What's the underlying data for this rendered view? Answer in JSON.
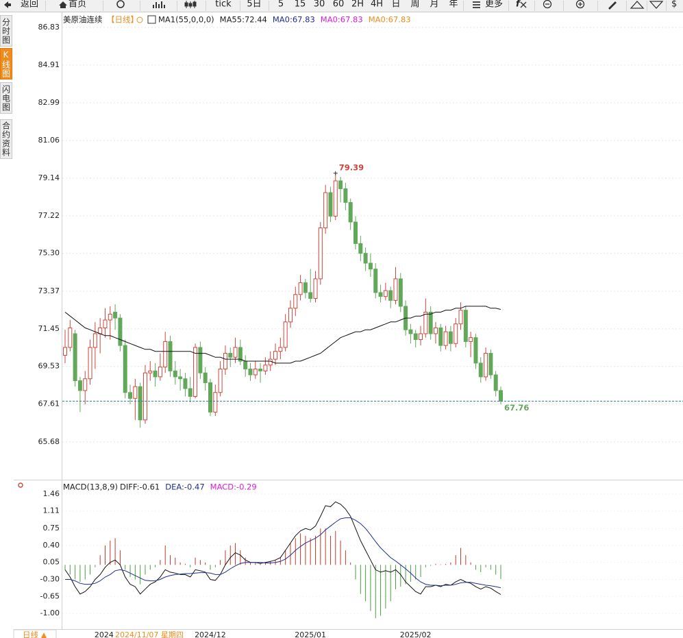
{
  "toolbar": {
    "back": "返回",
    "home": "首页",
    "tick": "tick",
    "periods": [
      "5日",
      "5",
      "15",
      "30",
      "60",
      "2H",
      "4H",
      "日",
      "周",
      "月",
      "年"
    ],
    "more": "更多",
    "cut": "$"
  },
  "side_tabs": [
    "分时图",
    "K线图",
    "闪电图",
    "合约资料"
  ],
  "bottom_tab": "日线 ▲",
  "chart_data": [
    {
      "type": "candlestick",
      "title": "美原油连续",
      "period": "【日线】",
      "legend": [
        {
          "text": "MA1(55,0,0,0)",
          "color": "#222222"
        },
        {
          "text": "MA55:72.44",
          "color": "#222222"
        },
        {
          "text": "MA0:67.83",
          "color": "#1f2f8f"
        },
        {
          "text": "MA0:67.83",
          "color": "#d81ed8"
        },
        {
          "text": "MA0:67.83",
          "color": "#f08c1e"
        }
      ],
      "cursor_label": "2024/11/07 星期四",
      "up_color": "#d0453a",
      "down_color": "#62a85a",
      "last_line_color": "#2a7a9a",
      "categories": [
        null,
        null,
        null,
        null,
        null,
        null,
        "2024",
        null,
        null,
        null,
        null,
        null,
        null,
        null,
        null,
        null,
        null,
        null,
        null,
        null,
        null,
        null,
        null,
        null,
        null,
        null,
        "2024/12",
        null,
        null,
        null,
        null,
        null,
        null,
        null,
        null,
        null,
        null,
        null,
        null,
        null,
        null,
        null,
        null,
        null,
        null,
        null,
        "2025/01",
        null,
        null,
        null,
        null,
        null,
        null,
        null,
        null,
        null,
        null,
        null,
        null,
        null,
        null,
        null,
        null,
        null,
        null,
        null,
        null,
        "2025/02",
        null,
        null,
        null,
        null,
        null,
        null,
        null,
        null,
        null,
        null,
        null,
        null,
        null,
        null,
        null,
        null,
        null,
        null,
        null,
        null
      ],
      "open": [
        70.1,
        70.5,
        71.2,
        68.8,
        68.3,
        68.9,
        70.5,
        71.2,
        71.5,
        71.9,
        72.3,
        72.0,
        70.6,
        68.2,
        67.9,
        68.5,
        66.8,
        69.2,
        69.3,
        69.0,
        69.5,
        70.8,
        69.3,
        69.0,
        68.9,
        68.4,
        68.0,
        70.5,
        69.2,
        68.7,
        67.2,
        68.2,
        69.4,
        70.2,
        70.0,
        70.5,
        69.8,
        69.4,
        69.1,
        69.4,
        69.3,
        69.6,
        69.9,
        70.3,
        70.5,
        71.8,
        72.5,
        73.2,
        73.8,
        73.3,
        73.0,
        74.0,
        76.6,
        78.4,
        77.2,
        79.0,
        78.6,
        77.9,
        76.9,
        75.8,
        75.3,
        74.8,
        74.5,
        73.3,
        73.1,
        73.4,
        72.9,
        74.0,
        72.6,
        71.4,
        71.2,
        70.9,
        71.2,
        72.3,
        71.2,
        71.5,
        70.6,
        71.3,
        70.7,
        71.7,
        72.4,
        70.8,
        71.0,
        69.7,
        69.0,
        70.2,
        69.1,
        68.3
      ],
      "high": [
        71.4,
        71.9,
        71.4,
        69.0,
        69.3,
        70.9,
        71.8,
        72.0,
        72.5,
        72.6,
        72.7,
        72.2,
        70.9,
        68.6,
        68.9,
        68.7,
        69.6,
        69.8,
        69.7,
        70.2,
        71.3,
        71.1,
        69.8,
        69.4,
        69.2,
        69.0,
        70.7,
        70.8,
        69.5,
        68.9,
        68.6,
        69.8,
        70.6,
        70.5,
        71.0,
        70.9,
        70.1,
        69.7,
        69.8,
        69.7,
        70.0,
        70.3,
        70.7,
        71.0,
        72.2,
        72.9,
        73.6,
        74.2,
        74.0,
        74.5,
        74.4,
        76.9,
        78.8,
        78.7,
        79.39,
        79.2,
        78.9,
        78.1,
        77.2,
        76.2,
        75.6,
        75.3,
        74.8,
        73.7,
        73.8,
        73.6,
        74.6,
        74.3,
        72.9,
        71.7,
        71.4,
        71.6,
        73.0,
        72.6,
        71.8,
        71.7,
        71.6,
        71.6,
        72.0,
        72.8,
        72.6,
        71.3,
        71.2,
        70.0,
        70.5,
        70.4,
        69.3,
        68.5
      ],
      "low": [
        69.7,
        70.3,
        68.5,
        67.2,
        67.6,
        68.6,
        69.4,
        70.2,
        71.0,
        70.9,
        71.4,
        70.3,
        67.9,
        67.6,
        66.8,
        66.4,
        66.6,
        68.8,
        68.5,
        68.8,
        69.2,
        69.0,
        68.6,
        68.3,
        68.0,
        67.7,
        67.9,
        68.9,
        68.3,
        67.0,
        67.0,
        68.0,
        69.1,
        69.5,
        69.7,
        69.6,
        69.0,
        68.8,
        68.9,
        68.7,
        69.1,
        69.3,
        69.6,
        69.9,
        70.3,
        71.5,
        72.1,
        72.9,
        73.0,
        72.8,
        72.8,
        73.7,
        76.3,
        76.9,
        77.0,
        77.9,
        77.5,
        76.5,
        75.5,
        74.9,
        74.4,
        74.1,
        73.0,
        72.8,
        72.9,
        72.5,
        72.7,
        72.3,
        71.1,
        70.7,
        70.5,
        70.6,
        71.0,
        70.9,
        70.7,
        70.3,
        70.4,
        70.3,
        70.5,
        71.4,
        70.5,
        70.0,
        69.4,
        68.7,
        68.8,
        68.9,
        68.0,
        67.6
      ],
      "close": [
        70.5,
        71.5,
        68.8,
        68.3,
        68.9,
        70.5,
        71.2,
        71.5,
        71.9,
        72.2,
        72.0,
        70.6,
        68.2,
        67.9,
        68.5,
        66.8,
        69.2,
        69.3,
        69.0,
        69.5,
        70.8,
        69.3,
        69.0,
        68.9,
        68.4,
        68.0,
        70.5,
        69.2,
        68.7,
        67.2,
        68.2,
        69.4,
        70.2,
        70.0,
        70.5,
        69.8,
        69.4,
        69.1,
        69.4,
        69.3,
        69.6,
        69.9,
        70.3,
        70.5,
        71.8,
        72.5,
        73.2,
        73.8,
        73.3,
        73.0,
        74.0,
        76.6,
        78.4,
        77.2,
        79.0,
        78.6,
        77.9,
        76.9,
        75.8,
        75.3,
        74.8,
        74.5,
        73.3,
        73.1,
        73.4,
        72.9,
        74.0,
        72.6,
        71.4,
        71.2,
        70.9,
        71.2,
        72.3,
        71.2,
        71.5,
        70.6,
        71.3,
        70.7,
        71.7,
        72.4,
        70.8,
        71.0,
        69.7,
        69.0,
        70.2,
        69.1,
        68.3,
        67.76
      ],
      "ma55": {
        "color": "#111111",
        "values": [
          72.3,
          72.1,
          71.9,
          71.7,
          71.5,
          71.4,
          71.3,
          71.2,
          71.1,
          71.1,
          71.0,
          70.9,
          70.8,
          70.7,
          70.6,
          70.5,
          70.4,
          70.4,
          70.3,
          70.3,
          70.3,
          70.3,
          70.3,
          70.3,
          70.3,
          70.3,
          70.2,
          70.2,
          70.2,
          70.1,
          70.0,
          70.0,
          69.9,
          69.9,
          69.9,
          69.9,
          69.8,
          69.8,
          69.8,
          69.8,
          69.8,
          69.8,
          69.7,
          69.7,
          69.7,
          69.7,
          69.8,
          69.8,
          69.9,
          70.0,
          70.1,
          70.2,
          70.4,
          70.6,
          70.8,
          71.0,
          71.1,
          71.2,
          71.3,
          71.3,
          71.4,
          71.4,
          71.5,
          71.6,
          71.7,
          71.8,
          71.8,
          71.9,
          72.0,
          72.0,
          72.1,
          72.1,
          72.2,
          72.2,
          72.3,
          72.3,
          72.4,
          72.4,
          72.5,
          72.5,
          72.6,
          72.6,
          72.6,
          72.6,
          72.6,
          72.5,
          72.5,
          72.44
        ]
      },
      "ylim": [
        63.75,
        87.6
      ],
      "yticks": [
        86.83,
        84.91,
        82.99,
        81.06,
        79.14,
        77.22,
        {
          "value": 75.3,
          "label": "75.30"
        },
        73.37,
        71.45,
        69.53,
        67.61,
        65.68
      ],
      "grid": true
    },
    {
      "type": "macd",
      "title": "MACD(13,8,9)",
      "legend": [
        {
          "text": "DIFF:-0.61",
          "color": "#222222"
        },
        {
          "text": "DEA:-0.47",
          "color": "#1f2f8f"
        },
        {
          "text": "MACD:-0.29",
          "color": "#d81ed8"
        }
      ],
      "up_color": "#c0392b",
      "down_color": "#4a9e3f",
      "histogram": [
        -0.1,
        -0.2,
        -0.3,
        -0.35,
        -0.3,
        -0.2,
        -0.05,
        0.2,
        0.4,
        0.5,
        0.55,
        0.3,
        -0.1,
        -0.25,
        -0.3,
        -0.4,
        -0.2,
        -0.1,
        -0.05,
        0.1,
        0.4,
        0.2,
        0.15,
        0.05,
        0.02,
        -0.05,
        0.15,
        0.1,
        0.05,
        -0.1,
        -0.05,
        0.1,
        0.3,
        0.4,
        0.45,
        0.3,
        0.15,
        0.05,
        0.05,
        0.02,
        0.05,
        0.08,
        0.1,
        0.15,
        0.3,
        0.45,
        0.55,
        0.65,
        0.6,
        0.55,
        0.6,
        0.75,
        0.75,
        0.6,
        0.7,
        0.5,
        0.3,
        0.05,
        -0.3,
        -0.6,
        -0.75,
        -0.95,
        -1.1,
        -1.05,
        -0.9,
        -0.75,
        -0.5,
        -0.45,
        -0.4,
        -0.35,
        -0.3,
        -0.25,
        -0.05,
        -0.02,
        0.02,
        0.01,
        0.02,
        0.05,
        0.2,
        0.35,
        0.2,
        0.05,
        -0.1,
        -0.15,
        -0.05,
        -0.1,
        -0.2,
        -0.29
      ],
      "diff": {
        "color": "#111111",
        "values": [
          -0.1,
          -0.25,
          -0.45,
          -0.6,
          -0.55,
          -0.45,
          -0.3,
          -0.2,
          -0.05,
          0.05,
          0.1,
          0.0,
          -0.25,
          -0.4,
          -0.45,
          -0.6,
          -0.5,
          -0.4,
          -0.35,
          -0.25,
          -0.1,
          -0.15,
          -0.17,
          -0.2,
          -0.2,
          -0.25,
          -0.1,
          -0.12,
          -0.15,
          -0.3,
          -0.32,
          -0.2,
          0.0,
          0.15,
          0.25,
          0.2,
          0.1,
          0.05,
          0.05,
          0.03,
          0.05,
          0.07,
          0.1,
          0.15,
          0.3,
          0.45,
          0.6,
          0.7,
          0.75,
          0.72,
          0.8,
          1.0,
          1.22,
          1.2,
          1.3,
          1.25,
          1.15,
          1.0,
          0.75,
          0.5,
          0.3,
          0.1,
          -0.1,
          -0.15,
          -0.12,
          -0.15,
          -0.1,
          -0.2,
          -0.35,
          -0.45,
          -0.55,
          -0.6,
          -0.45,
          -0.45,
          -0.42,
          -0.45,
          -0.4,
          -0.42,
          -0.35,
          -0.3,
          -0.35,
          -0.38,
          -0.45,
          -0.5,
          -0.45,
          -0.48,
          -0.55,
          -0.61
        ]
      },
      "dea": {
        "color": "#1f2f8f",
        "values": [
          -0.3,
          -0.3,
          -0.33,
          -0.38,
          -0.4,
          -0.4,
          -0.38,
          -0.33,
          -0.25,
          -0.2,
          -0.12,
          -0.1,
          -0.12,
          -0.17,
          -0.22,
          -0.27,
          -0.32,
          -0.33,
          -0.33,
          -0.3,
          -0.25,
          -0.22,
          -0.2,
          -0.19,
          -0.18,
          -0.18,
          -0.17,
          -0.16,
          -0.16,
          -0.17,
          -0.2,
          -0.2,
          -0.15,
          -0.08,
          -0.02,
          0.03,
          0.05,
          0.05,
          0.05,
          0.05,
          0.04,
          0.04,
          0.05,
          0.07,
          0.12,
          0.2,
          0.3,
          0.38,
          0.45,
          0.5,
          0.55,
          0.62,
          0.72,
          0.8,
          0.88,
          0.95,
          0.97,
          0.97,
          0.92,
          0.85,
          0.75,
          0.62,
          0.48,
          0.35,
          0.25,
          0.15,
          0.08,
          0.0,
          -0.08,
          -0.17,
          -0.27,
          -0.35,
          -0.4,
          -0.42,
          -0.42,
          -0.43,
          -0.42,
          -0.42,
          -0.4,
          -0.37,
          -0.36,
          -0.36,
          -0.38,
          -0.4,
          -0.42,
          -0.43,
          -0.45,
          -0.47
        ]
      },
      "ylim": [
        -1.324,
        1.756
      ],
      "yticks": [
        1.46,
        1.11,
        0.75,
        {
          "value": 0.4,
          "label": "0.40"
        },
        0.05,
        {
          "value": -0.3,
          "label": "-0.30"
        },
        -0.65,
        {
          "value": -1.0,
          "label": "-1.00"
        }
      ]
    }
  ]
}
